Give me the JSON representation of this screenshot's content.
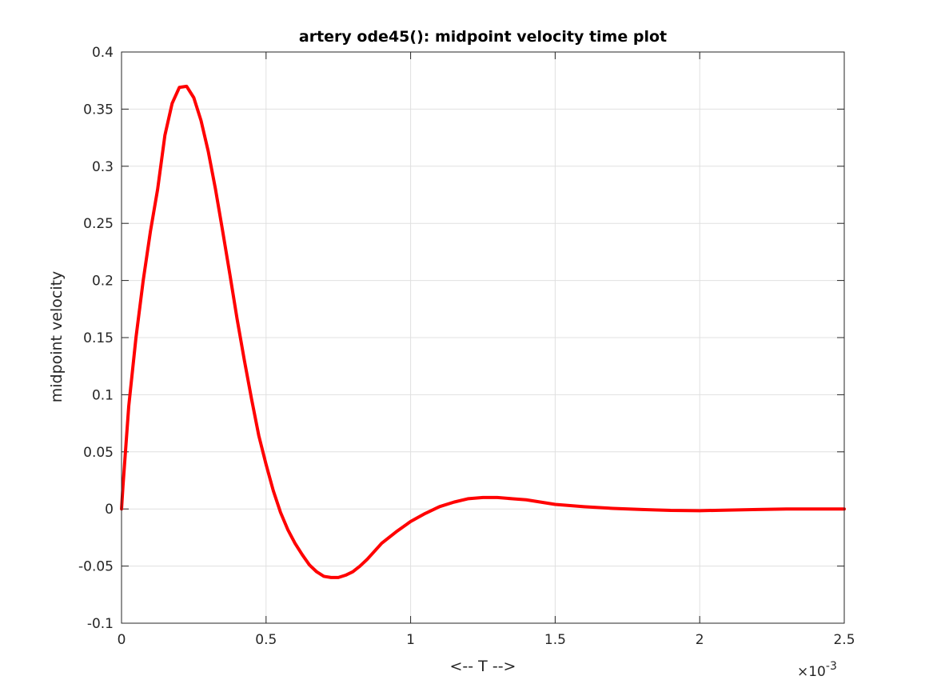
{
  "chart_data": {
    "type": "line",
    "title": "artery ode45(): midpoint velocity time plot",
    "xlabel": "<-- T -->",
    "ylabel": "midpoint velocity",
    "x_exponent_label": {
      "prefix": "×10",
      "exponent": "-3"
    },
    "xlim": [
      0,
      0.0025
    ],
    "ylim": [
      -0.1,
      0.4
    ],
    "grid": true,
    "x_ticks": [
      0,
      0.0005,
      0.001,
      0.0015,
      0.002,
      0.0025
    ],
    "x_tick_labels": [
      "0",
      "0.5",
      "1",
      "1.5",
      "2",
      "2.5"
    ],
    "y_ticks": [
      -0.1,
      -0.05,
      0,
      0.05,
      0.1,
      0.15,
      0.2,
      0.25,
      0.3,
      0.35,
      0.4
    ],
    "y_tick_labels": [
      "-0.1",
      "-0.05",
      "0",
      "0.05",
      "0.1",
      "0.15",
      "0.2",
      "0.25",
      "0.3",
      "0.35",
      "0.4"
    ],
    "line_color": "#ff0000",
    "series": [
      {
        "x": [
          0,
          5e-06,
          2.5e-05,
          5e-05,
          7.5e-05,
          0.0001,
          0.000125,
          0.00015,
          0.000175,
          0.0002,
          0.000225,
          0.00025,
          0.000275,
          0.0003,
          0.000325,
          0.00035,
          0.000375,
          0.0004,
          0.000425,
          0.00045,
          0.000475,
          0.0005,
          0.000525,
          0.00055,
          0.000575,
          0.0006,
          0.000625,
          0.00065,
          0.000675,
          0.0007,
          0.000725,
          0.00075,
          0.000775,
          0.0008,
          0.000825,
          0.00085,
          0.000875,
          0.0009,
          0.00095,
          0.001,
          0.00105,
          0.0011,
          0.00115,
          0.0012,
          0.00125,
          0.0013,
          0.00135,
          0.0014,
          0.00145,
          0.0015,
          0.0016,
          0.0017,
          0.0018,
          0.0019,
          0.002,
          0.0021,
          0.0022,
          0.0023,
          0.0024,
          0.0025
        ],
        "y": [
          0,
          0.02,
          0.09,
          0.15,
          0.2,
          0.243,
          0.28,
          0.327,
          0.355,
          0.369,
          0.37,
          0.36,
          0.34,
          0.313,
          0.28,
          0.243,
          0.205,
          0.166,
          0.13,
          0.096,
          0.064,
          0.039,
          0.016,
          -0.003,
          -0.018,
          -0.03,
          -0.04,
          -0.049,
          -0.055,
          -0.059,
          -0.06,
          -0.06,
          -0.058,
          -0.055,
          -0.05,
          -0.044,
          -0.037,
          -0.03,
          -0.02,
          -0.011,
          -0.004,
          0.002,
          0.006,
          0.009,
          0.01,
          0.01,
          0.009,
          0.008,
          0.006,
          0.004,
          0.002,
          0.0005,
          -0.0005,
          -0.0013,
          -0.0015,
          -0.001,
          -0.0005,
          0,
          0,
          0
        ]
      }
    ]
  }
}
